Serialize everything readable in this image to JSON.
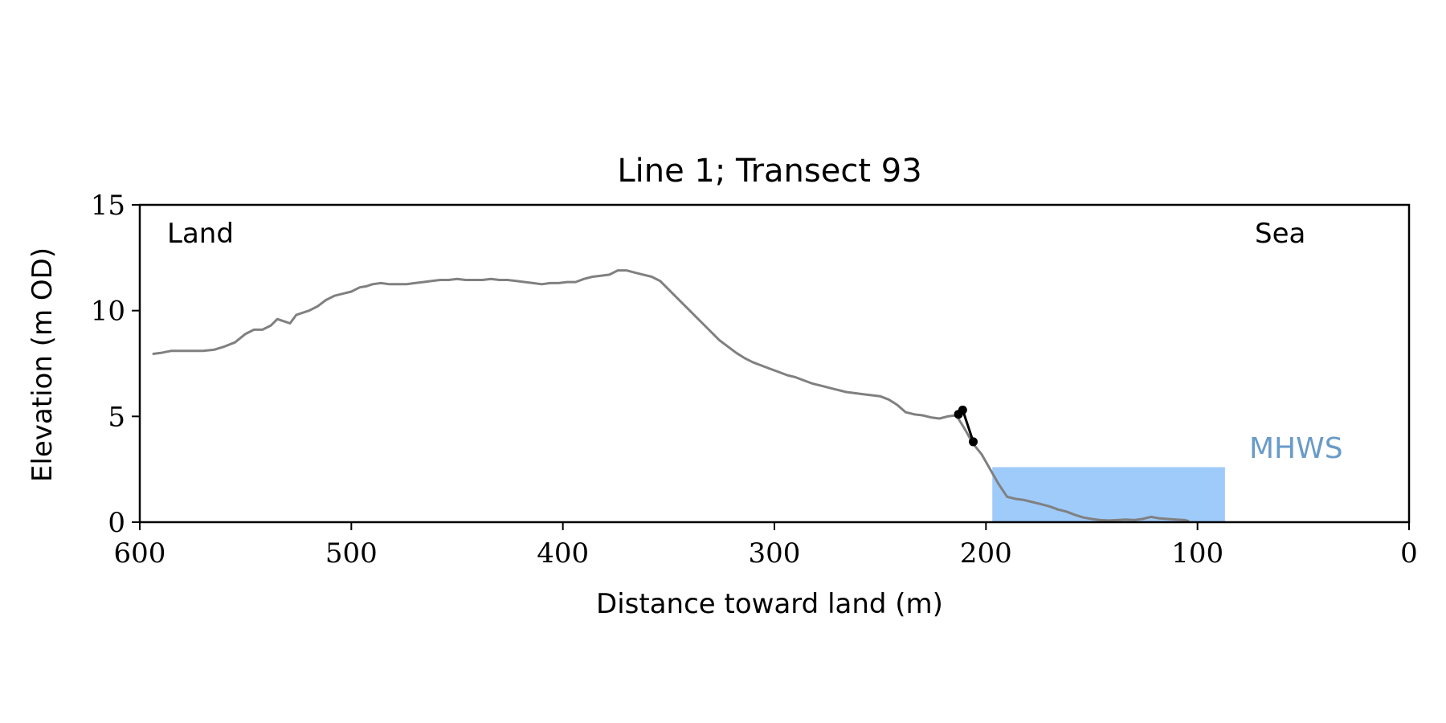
{
  "chart_data": {
    "type": "line",
    "title": "Line 1; Transect 93",
    "xlabel": "Distance toward land (m)",
    "ylabel": "Elevation (m OD)",
    "xlim": [
      600,
      0
    ],
    "ylim": [
      0,
      15
    ],
    "x_reversed": true,
    "xticks": [
      600,
      500,
      400,
      300,
      200,
      100,
      0
    ],
    "yticks": [
      0,
      5,
      10,
      15
    ],
    "xtick_labels": [
      "600",
      "500",
      "400",
      "300",
      "200",
      "100",
      "0"
    ],
    "ytick_labels": [
      "0",
      "5",
      "10",
      "15"
    ],
    "grid": false,
    "annotations": {
      "land": "Land",
      "sea": "Sea",
      "mhws": "MHWS"
    },
    "colors": {
      "profile": "#808080",
      "picks": "#000000",
      "mhws_fill": "#9fcbfb",
      "mhws_text": "#6a9bc9",
      "axes": "#000000"
    },
    "mhws_region": {
      "x_start": 197,
      "x_end": 87,
      "elevation": 2.6
    },
    "series": [
      {
        "x": [
          594,
          590,
          585,
          580,
          575,
          570,
          565,
          560,
          555,
          550,
          546,
          542,
          538,
          535,
          532,
          529,
          526,
          523,
          520,
          516,
          512,
          508,
          504,
          500,
          496,
          493,
          490,
          486,
          482,
          478,
          474,
          470,
          466,
          462,
          458,
          454,
          450,
          446,
          442,
          438,
          434,
          430,
          426,
          422,
          418,
          414,
          410,
          406,
          402,
          398,
          394,
          390,
          386,
          382,
          378,
          374,
          370,
          366,
          362,
          358,
          354,
          350,
          346,
          342,
          338,
          334,
          330,
          326,
          322,
          318,
          314,
          310,
          306,
          302,
          298,
          294,
          290,
          286,
          282,
          278,
          274,
          270,
          266,
          262,
          258,
          254,
          250,
          246,
          242,
          238,
          234,
          230,
          226,
          222,
          218,
          214,
          210,
          206,
          202,
          198,
          194,
          190,
          186,
          182,
          178,
          174,
          170,
          166,
          162,
          158,
          154,
          150,
          146,
          142,
          138,
          134,
          130,
          126,
          122,
          118,
          114,
          110,
          106,
          104
        ],
        "y": [
          7.95,
          8.0,
          8.1,
          8.1,
          8.1,
          8.1,
          8.15,
          8.3,
          8.5,
          8.9,
          9.1,
          9.1,
          9.3,
          9.6,
          9.5,
          9.4,
          9.8,
          9.9,
          10.0,
          10.2,
          10.5,
          10.7,
          10.8,
          10.9,
          11.1,
          11.15,
          11.25,
          11.3,
          11.25,
          11.25,
          11.25,
          11.3,
          11.35,
          11.4,
          11.45,
          11.45,
          11.5,
          11.45,
          11.45,
          11.45,
          11.5,
          11.45,
          11.45,
          11.4,
          11.35,
          11.3,
          11.25,
          11.3,
          11.3,
          11.35,
          11.35,
          11.5,
          11.6,
          11.65,
          11.7,
          11.9,
          11.9,
          11.8,
          11.7,
          11.6,
          11.4,
          11.0,
          10.6,
          10.2,
          9.8,
          9.4,
          9.0,
          8.6,
          8.3,
          8.0,
          7.75,
          7.55,
          7.4,
          7.25,
          7.1,
          6.95,
          6.85,
          6.7,
          6.55,
          6.45,
          6.35,
          6.25,
          6.15,
          6.1,
          6.05,
          6.0,
          5.95,
          5.8,
          5.55,
          5.2,
          5.1,
          5.05,
          4.95,
          4.9,
          5.0,
          5.05,
          4.4,
          3.7,
          3.2,
          2.5,
          1.8,
          1.2,
          1.1,
          1.05,
          0.95,
          0.85,
          0.75,
          0.6,
          0.5,
          0.35,
          0.22,
          0.15,
          0.1,
          0.08,
          0.1,
          0.12,
          0.1,
          0.15,
          0.25,
          0.18,
          0.15,
          0.12,
          0.1,
          0.05
        ]
      },
      {
        "x": [
          213,
          211,
          206
        ],
        "y": [
          5.1,
          5.3,
          3.8
        ]
      }
    ]
  }
}
